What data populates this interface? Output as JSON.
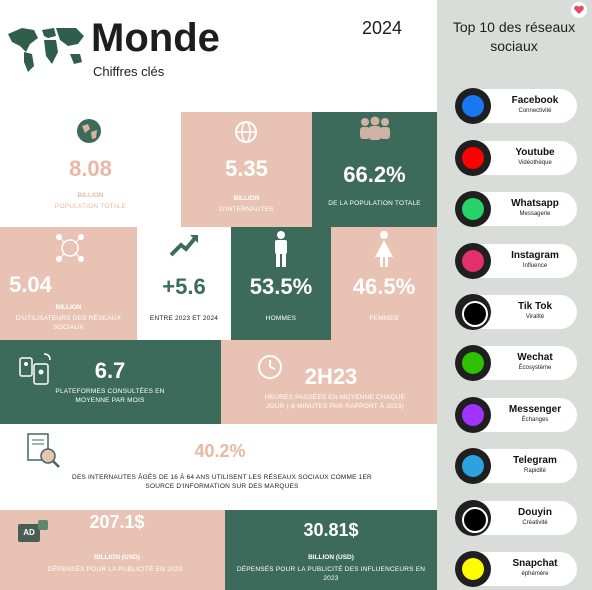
{
  "header": {
    "title": "Monde",
    "subtitle": "Chiffres clés",
    "year": "2024"
  },
  "population": {
    "value": "8.08",
    "unit": "BILLION",
    "label": "POPULATION TOTALE"
  },
  "internet": {
    "value": "5.35",
    "unit": "BILLION",
    "label": "D'INTERNAUTES"
  },
  "internet_share": {
    "value": "66.2%",
    "label": "DE LA POPULATION TOTALE"
  },
  "social_users": {
    "value": "5.04",
    "unit": "BILLION",
    "label": "D'UTILISATEURS DES RÉSEAUX SOCIAUX"
  },
  "growth": {
    "value": "+5.6",
    "label": "ENTRE 2023 ET 2024"
  },
  "men": {
    "value": "53.5%",
    "label": "HOMMES"
  },
  "women": {
    "value": "46.5%",
    "label": "FEMMES"
  },
  "platforms": {
    "value": "6.7",
    "label": "PLATEFORMES CONSULTÉES EN MOYENNE PAR MOIS"
  },
  "time": {
    "value": "2H23",
    "label": "HEURES PASSÉES EN MOYENNE CHAQUE JOUR (-8 MINUTES PAR RAPPORT À 2023)"
  },
  "brand_info": {
    "value": "40.2%",
    "label": "DES INTERNAUTES ÂGÉS DE 16 À 64 ANS UTILISENT LES RÉSEAUX SOCIAUX COMME 1ER SOURCE D'INFORMATION SUR DES MARQUES"
  },
  "ad_spend": {
    "value": "207.1$",
    "unit": "BILLION (USD)",
    "label": "DÉPENSÉS POUR LA PUBLICITÉ EN 2023",
    "badge": "AD"
  },
  "influencer_spend": {
    "value": "30.81$",
    "unit": "BILLION (USD)",
    "label": "DÉPENSÉS POUR LA PUBLICITÉ DES INFLUENCEURS EN 2023"
  },
  "sidebar": {
    "title": "Top 10 des réseaux sociaux",
    "items": [
      {
        "name": "Facebook",
        "sub": "Connectivité",
        "color": "#1877f2"
      },
      {
        "name": "Youtube",
        "sub": "Vidéothèque",
        "color": "#ff0000"
      },
      {
        "name": "Whatsapp",
        "sub": "Messagerie",
        "color": "#25d366"
      },
      {
        "name": "Instagram",
        "sub": "Influence",
        "color": "#e1306c"
      },
      {
        "name": "Tik Tok",
        "sub": "Viralité",
        "color": "#000000"
      },
      {
        "name": "Wechat",
        "sub": "Écosystème",
        "color": "#2dc100"
      },
      {
        "name": "Messenger",
        "sub": "Échanges",
        "color": "#a033ff"
      },
      {
        "name": "Telegram",
        "sub": "Rapidité",
        "color": "#2aa3e0"
      },
      {
        "name": "Douyin",
        "sub": "Créativité",
        "color": "#000000"
      },
      {
        "name": "Snapchat",
        "sub": "éphémère",
        "color": "#fffc00"
      }
    ]
  }
}
